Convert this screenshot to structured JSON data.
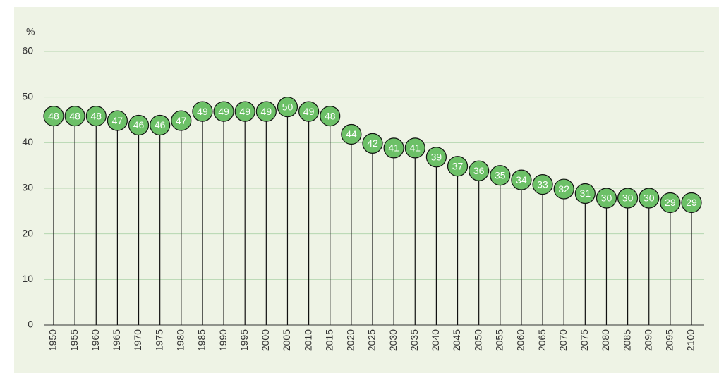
{
  "chart_data": {
    "type": "lollipop",
    "y_unit": "%",
    "categories": [
      "1950",
      "1955",
      "1960",
      "1965",
      "1970",
      "1975",
      "1980",
      "1985",
      "1990",
      "1995",
      "2000",
      "2005",
      "2010",
      "2015",
      "2020",
      "2025",
      "2030",
      "2035",
      "2040",
      "2045",
      "2050",
      "2055",
      "2060",
      "2065",
      "2070",
      "2075",
      "2080",
      "2085",
      "2090",
      "2095",
      "2100"
    ],
    "values": [
      48,
      48,
      48,
      47,
      46,
      46,
      47,
      49,
      49,
      49,
      49,
      50,
      49,
      48,
      44,
      42,
      41,
      41,
      39,
      37,
      36,
      35,
      34,
      33,
      32,
      31,
      30,
      30,
      30,
      29,
      29
    ],
    "color": "#6cc067",
    "ylim": [
      0,
      60
    ],
    "yticks": [
      0,
      10,
      20,
      30,
      40,
      50,
      60
    ],
    "grid": true
  }
}
